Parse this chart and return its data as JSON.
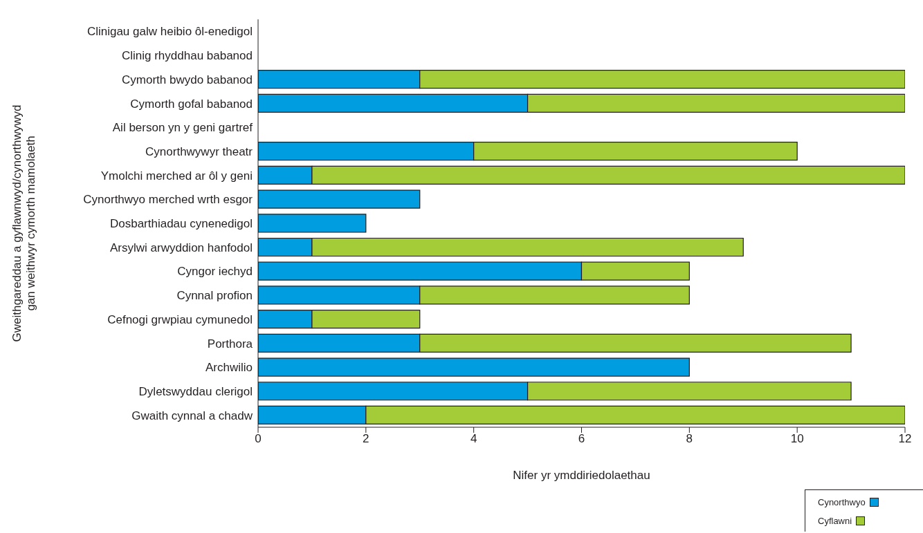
{
  "chart_data": {
    "type": "bar",
    "orientation": "horizontal",
    "stacked": true,
    "xlabel": "Nifer yr ymddiriedolaethau",
    "ylabel": "Gweithgareddau a gyflawnwyd/cynorthwywyd\ngan weithwyr cymorth mamolaeth",
    "categories": [
      "Clinigau galw heibio ôl-enedigol",
      "Clinig rhyddhau babanod",
      "Cymorth bwydo babanod",
      "Cymorth gofal babanod",
      "Ail berson yn y geni gartref",
      "Cynorthwywyr theatr",
      "Ymolchi merched ar ôl y geni",
      "Cynorthwyo merched wrth esgor",
      "Dosbarthiadau cynenedigol",
      "Arsylwi arwyddion hanfodol",
      "Cyngor iechyd",
      "Cynnal profion",
      "Cefnogi grwpiau cymunedol",
      "Porthora",
      "Archwilio",
      "Dyletswyddau clerigol",
      "Gwaith cynnal a chadw"
    ],
    "series": [
      {
        "name": "Cynorthwyo",
        "color": "#009ee0",
        "values": [
          null,
          null,
          3,
          5,
          null,
          4,
          1,
          3,
          2,
          1,
          6,
          3,
          1,
          3,
          8,
          5,
          2
        ]
      },
      {
        "name": "Cyflawni",
        "color": "#a4cc39",
        "values": [
          null,
          null,
          9,
          7,
          null,
          6,
          11,
          null,
          null,
          8,
          2,
          5,
          2,
          8,
          null,
          6,
          10
        ]
      }
    ],
    "xlim": [
      0,
      12
    ],
    "xticks": [
      0,
      2,
      4,
      6,
      8,
      10,
      12
    ],
    "grid": false,
    "legend": "bottom right"
  }
}
